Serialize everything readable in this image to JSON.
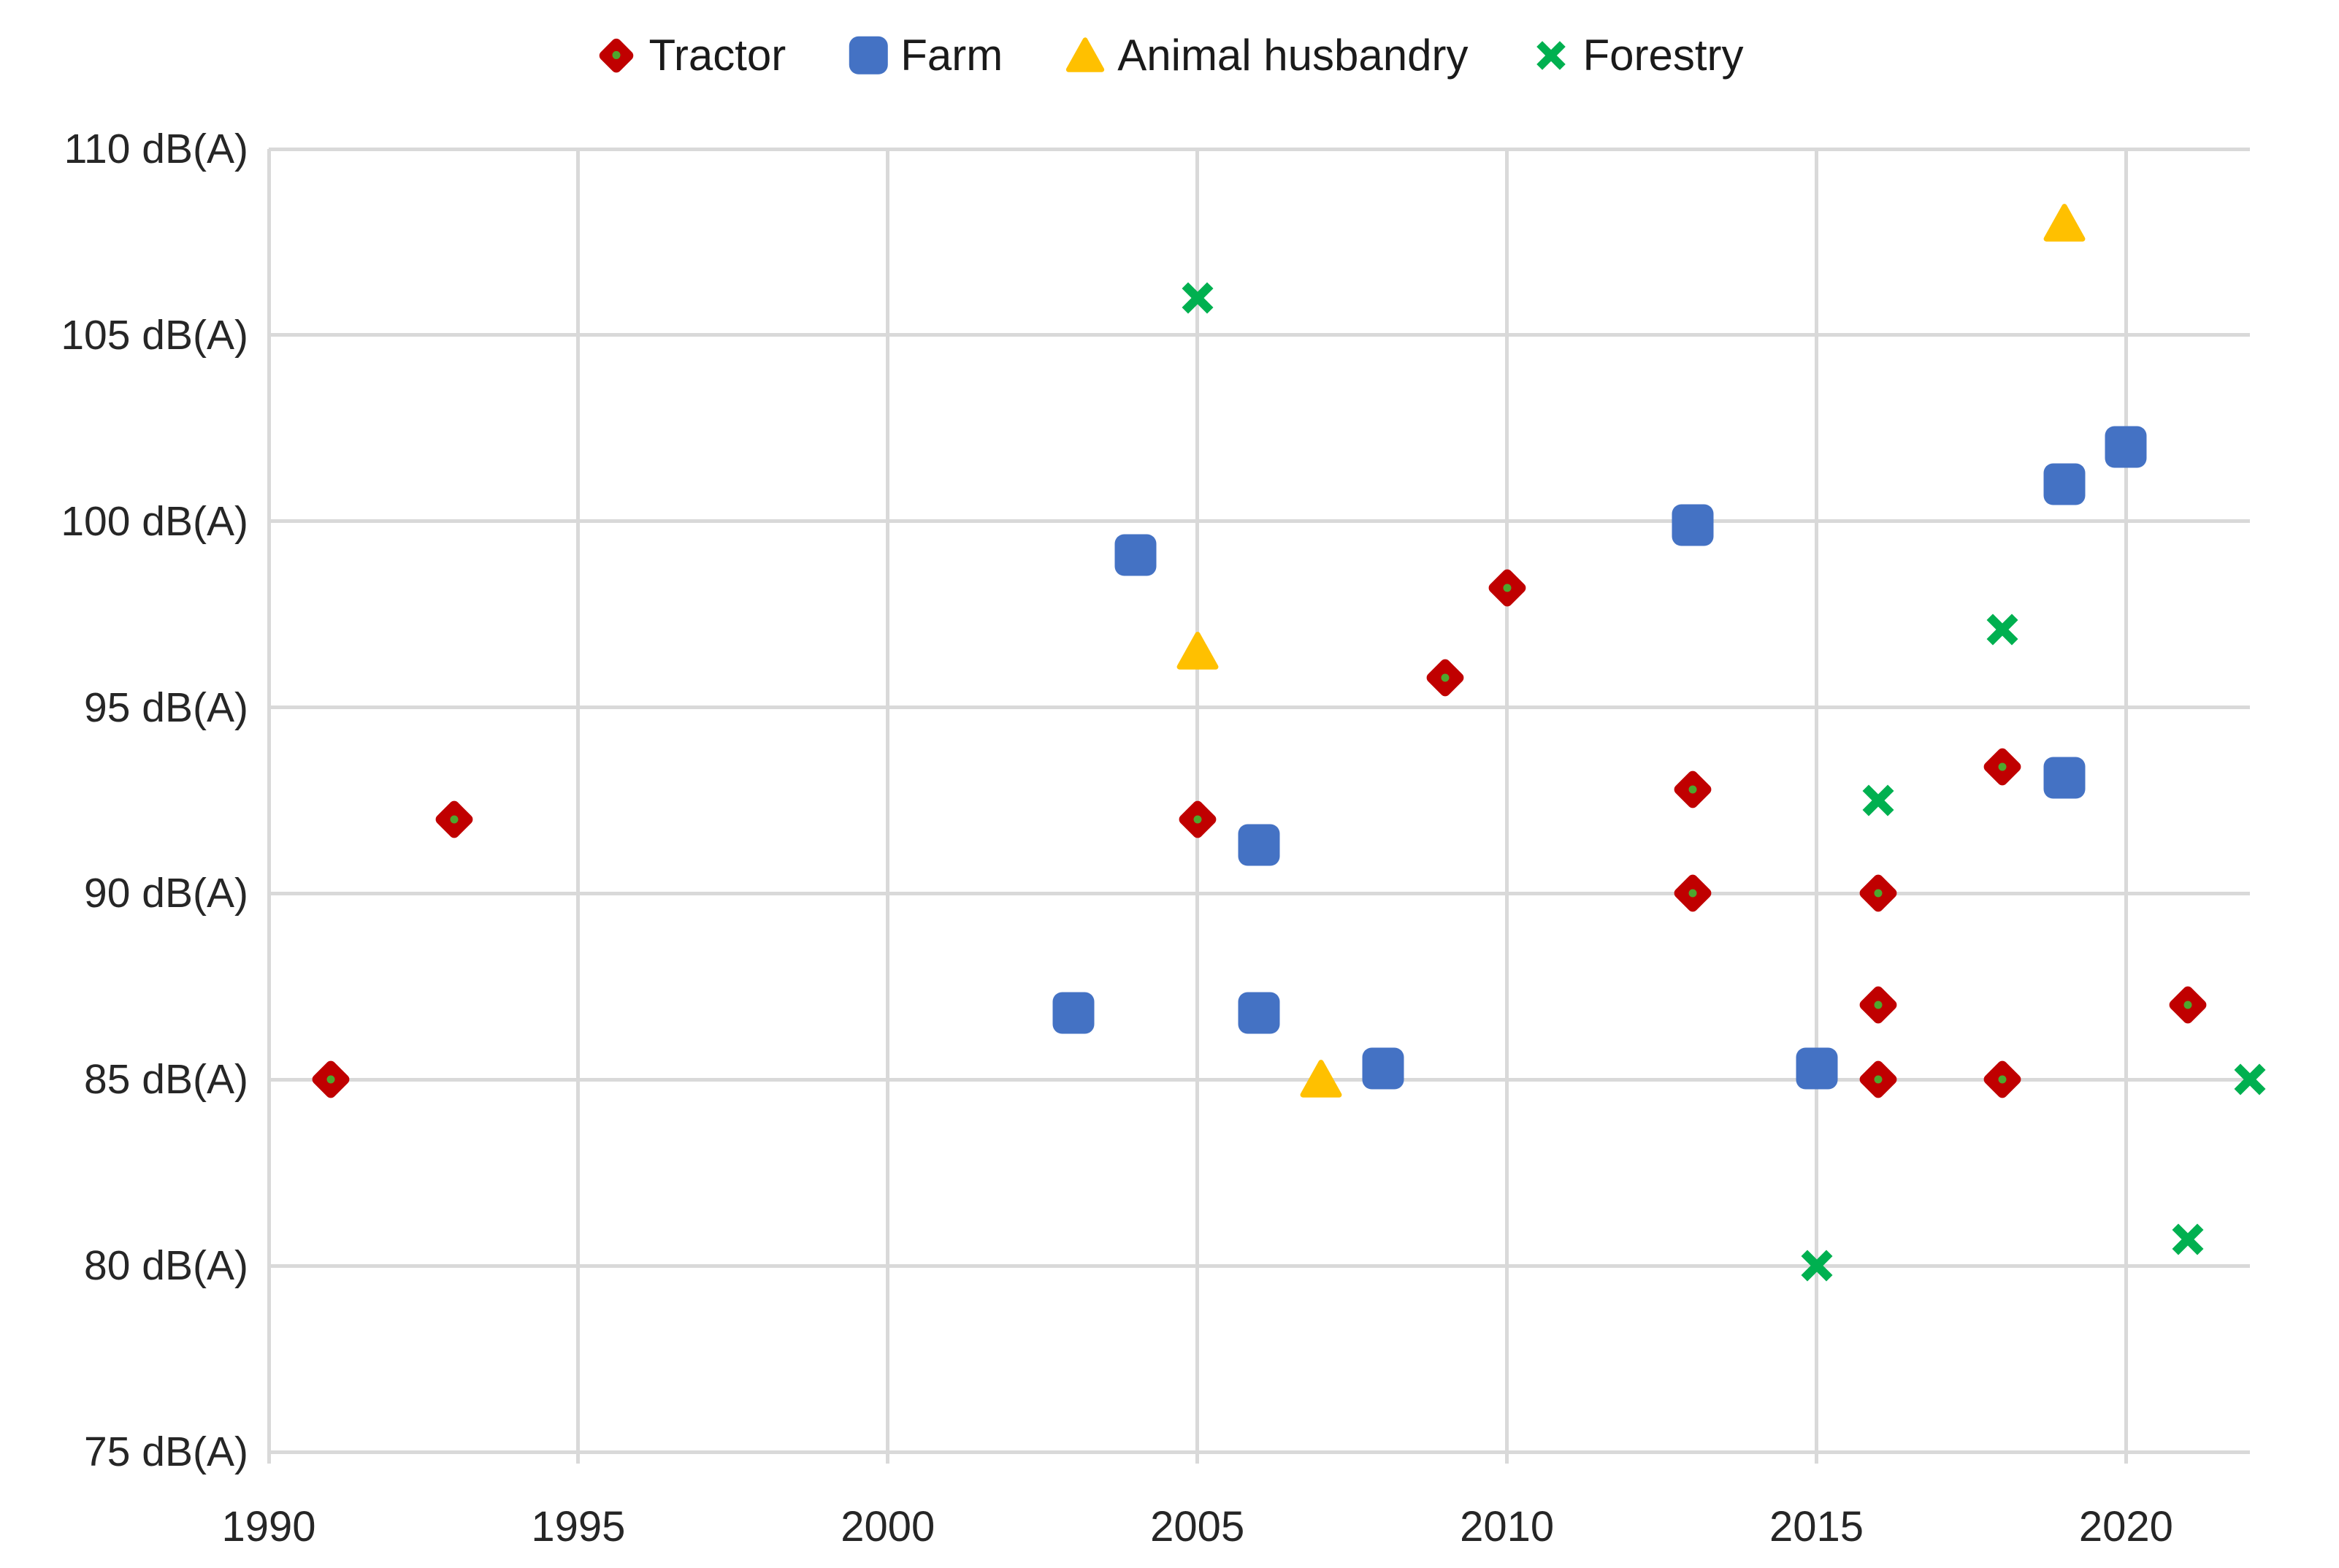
{
  "chart_data": {
    "type": "scatter",
    "title": "",
    "xlabel": "",
    "ylabel": "dB(A)",
    "xlim": [
      1990,
      2022
    ],
    "ylim": [
      75,
      110
    ],
    "grid": true,
    "legend_position": "top",
    "series": [
      {
        "name": "Tractor",
        "marker": "diamond",
        "color": "#C00000",
        "dot_color": "#4EA72E",
        "points": [
          [
            1991,
            85
          ],
          [
            1993,
            92
          ],
          [
            2005,
            92
          ],
          [
            2009,
            95.8
          ],
          [
            2010,
            98.2
          ],
          [
            2013,
            92.8
          ],
          [
            2013,
            90
          ],
          [
            2016,
            90
          ],
          [
            2016,
            87
          ],
          [
            2016,
            85
          ],
          [
            2018,
            93.4
          ],
          [
            2018,
            85
          ],
          [
            2021,
            87
          ]
        ]
      },
      {
        "name": "Farm",
        "marker": "square",
        "color": "#4472C4",
        "points": [
          [
            2003,
            86.8
          ],
          [
            2004,
            99.1
          ],
          [
            2006,
            91.3
          ],
          [
            2006,
            86.8
          ],
          [
            2008,
            85.3
          ],
          [
            2013,
            99.9
          ],
          [
            2015,
            85.3
          ],
          [
            2019,
            101
          ],
          [
            2019,
            93.1
          ],
          [
            2020,
            102
          ]
        ]
      },
      {
        "name": "Animal husbandry",
        "marker": "triangle",
        "color": "#FFC000",
        "points": [
          [
            2005,
            96.5
          ],
          [
            2007,
            85
          ],
          [
            2019,
            108
          ]
        ]
      },
      {
        "name": "Forestry",
        "marker": "x",
        "color": "#00B050",
        "points": [
          [
            2005,
            106
          ],
          [
            2015,
            80
          ],
          [
            2016,
            92.5
          ],
          [
            2018,
            97.1
          ],
          [
            2021,
            80.7
          ],
          [
            2022,
            85
          ]
        ]
      }
    ]
  },
  "legend": {
    "items": [
      {
        "label": "Tractor"
      },
      {
        "label": "Farm"
      },
      {
        "label": "Animal husbandry"
      },
      {
        "label": "Forestry"
      }
    ]
  },
  "y_axis": {
    "ticks": [
      {
        "value": 110,
        "label": "110 dB(A)"
      },
      {
        "value": 105,
        "label": "105 dB(A)"
      },
      {
        "value": 100,
        "label": "100 dB(A)"
      },
      {
        "value": 95,
        "label": "95 dB(A)"
      },
      {
        "value": 90,
        "label": "90 dB(A)"
      },
      {
        "value": 85,
        "label": "85 dB(A)"
      },
      {
        "value": 80,
        "label": "80 dB(A)"
      },
      {
        "value": 75,
        "label": "75 dB(A)"
      }
    ]
  },
  "x_axis": {
    "ticks": [
      {
        "value": 1990,
        "label": "1990"
      },
      {
        "value": 1995,
        "label": "1995"
      },
      {
        "value": 2000,
        "label": "2000"
      },
      {
        "value": 2005,
        "label": "2005"
      },
      {
        "value": 2010,
        "label": "2010"
      },
      {
        "value": 2015,
        "label": "2015"
      },
      {
        "value": 2020,
        "label": "2020"
      }
    ]
  },
  "colors": {
    "gridline": "#D9D9D9",
    "tick_text": "#262626",
    "legend_text": "#1A1A1A",
    "background": "#FFFFFF"
  }
}
